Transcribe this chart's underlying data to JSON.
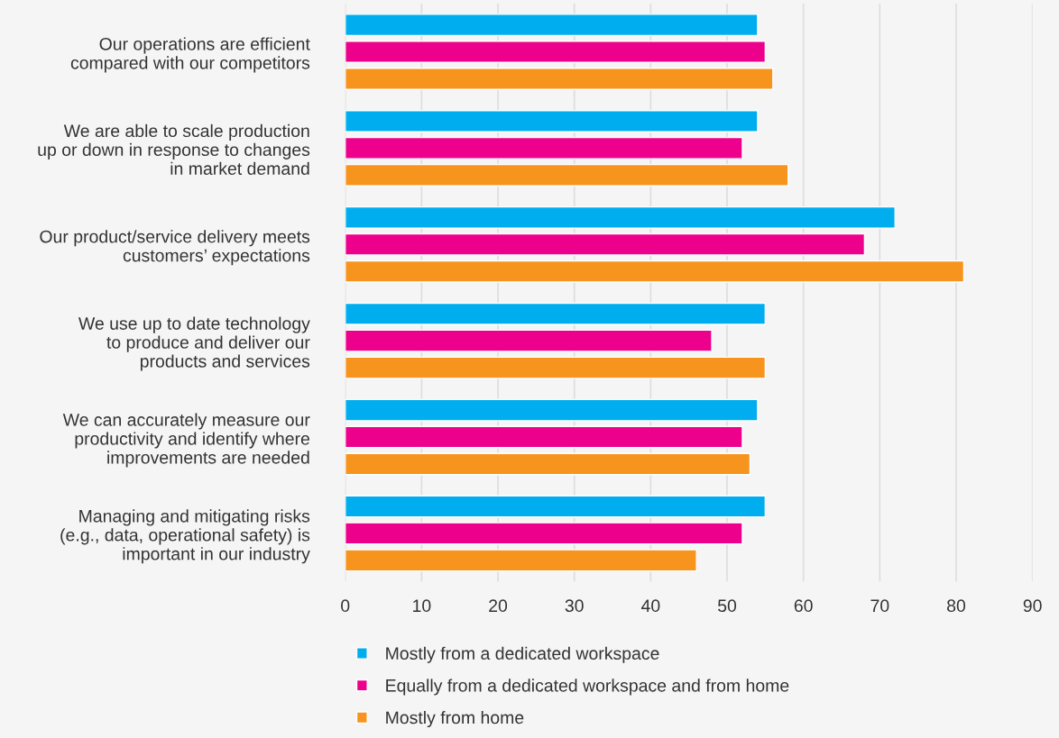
{
  "chart_data": {
    "type": "bar",
    "orientation": "horizontal",
    "categories": [
      "Our operations are efficient\ncompared with our competitors",
      "We are able to scale production\nup or down in response to changes\nin market demand",
      "Our product/service delivery meets\ncustomers’ expectations",
      "We use up to date technology\nto produce and deliver our\nproducts and services",
      "We can accurately measure our\nproductivity and identify where\nimprovements are needed",
      "Managing and mitigating risks\n(e.g., data, operational safety) is\nimportant in our industry"
    ],
    "series": [
      {
        "name": "Mostly from a dedicated workspace",
        "color": "#00aeef",
        "values": [
          54,
          54,
          72,
          55,
          54,
          55
        ]
      },
      {
        "name": "Equally from a dedicated workspace and from home",
        "color": "#ec008c",
        "values": [
          55,
          52,
          68,
          48,
          52,
          52
        ]
      },
      {
        "name": "Mostly from home",
        "color": "#f7941d",
        "values": [
          56,
          58,
          81,
          55,
          53,
          46
        ]
      }
    ],
    "xlim": [
      0,
      90
    ],
    "xticks": [
      0,
      10,
      20,
      30,
      40,
      50,
      60,
      70,
      80,
      90
    ],
    "grid": "x",
    "legend": "bottom"
  }
}
